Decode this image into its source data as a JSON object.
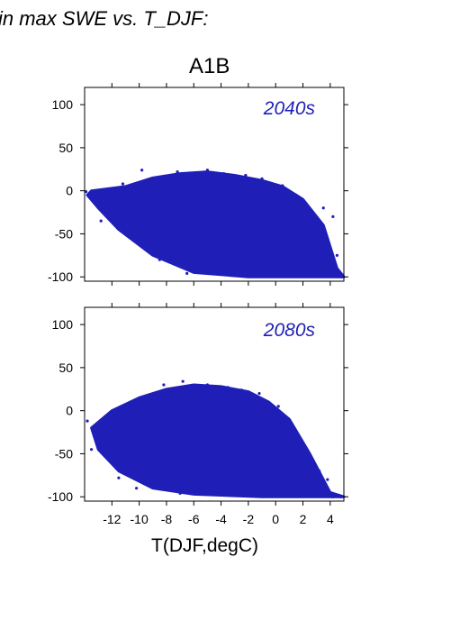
{
  "figure": {
    "header": "in max SWE vs. T_DJF:",
    "scenario": "A1B",
    "xlabel": "T(DJF,degC)",
    "point_color": "#1f1fb8"
  },
  "chart_data": [
    {
      "type": "scatter",
      "period_label": "2040s",
      "xlim": [
        -14,
        5
      ],
      "ylim": [
        -105,
        120
      ],
      "yticks": [
        100,
        50,
        0,
        -50,
        -100
      ],
      "xticks": [
        -12,
        -10,
        -8,
        -6,
        -4,
        -2,
        0,
        2,
        4
      ],
      "xticklabels_shown": false,
      "grid": false,
      "cloud_outline": [
        [
          -13.5,
          0
        ],
        [
          -11,
          5
        ],
        [
          -9,
          15
        ],
        [
          -7,
          20
        ],
        [
          -5,
          22
        ],
        [
          -3,
          18
        ],
        [
          -1,
          12
        ],
        [
          0.5,
          5
        ],
        [
          2,
          -10
        ],
        [
          3.5,
          -40
        ],
        [
          4.5,
          -90
        ],
        [
          5,
          -100
        ],
        [
          -2,
          -100
        ],
        [
          -6,
          -95
        ],
        [
          -9,
          -75
        ],
        [
          -11.5,
          -45
        ],
        [
          -13,
          -20
        ],
        [
          -13.8,
          -5
        ]
      ],
      "points": [
        [
          -13.9,
          -1
        ],
        [
          -12.8,
          -35
        ],
        [
          -11.2,
          8
        ],
        [
          -10.5,
          -55
        ],
        [
          -9.8,
          24
        ],
        [
          -8.5,
          -80
        ],
        [
          -7.2,
          22
        ],
        [
          -6.5,
          -96
        ],
        [
          -5.0,
          24
        ],
        [
          -3.8,
          20
        ],
        [
          -2.2,
          18
        ],
        [
          -1.0,
          14
        ],
        [
          0.5,
          6
        ],
        [
          1.5,
          -5
        ],
        [
          2.2,
          -25
        ],
        [
          2.8,
          -40
        ],
        [
          3.2,
          -55
        ],
        [
          3.5,
          -20
        ],
        [
          4.2,
          -30
        ],
        [
          4.5,
          -75
        ],
        [
          4.8,
          -100
        ],
        [
          3.9,
          -90
        ],
        [
          -12.0,
          -20
        ],
        [
          -13.0,
          -10
        ]
      ]
    },
    {
      "type": "scatter",
      "period_label": "2080s",
      "xlim": [
        -14,
        5
      ],
      "ylim": [
        -105,
        120
      ],
      "yticks": [
        100,
        50,
        0,
        -50,
        -100
      ],
      "xticks": [
        -12,
        -10,
        -8,
        -6,
        -4,
        -2,
        0,
        2,
        4
      ],
      "xticklabels": [
        "-12",
        "-10",
        "-8",
        "-6",
        "-4",
        "-2",
        "0",
        "2",
        "4"
      ],
      "grid": false,
      "cloud_outline": [
        [
          -13.5,
          -20
        ],
        [
          -12,
          0
        ],
        [
          -10,
          15
        ],
        [
          -8,
          25
        ],
        [
          -6,
          30
        ],
        [
          -4,
          28
        ],
        [
          -2,
          22
        ],
        [
          -0.5,
          10
        ],
        [
          1,
          -10
        ],
        [
          2.5,
          -50
        ],
        [
          4,
          -95
        ],
        [
          5,
          -100
        ],
        [
          -1,
          -100
        ],
        [
          -6,
          -97
        ],
        [
          -9,
          -90
        ],
        [
          -11.5,
          -70
        ],
        [
          -13,
          -45
        ]
      ],
      "points": [
        [
          -13.8,
          -12
        ],
        [
          -13.5,
          -45
        ],
        [
          -12.2,
          -5
        ],
        [
          -11.5,
          -78
        ],
        [
          -10.0,
          12
        ],
        [
          -8.2,
          30
        ],
        [
          -6.8,
          34
        ],
        [
          -5.0,
          30
        ],
        [
          -3.5,
          27
        ],
        [
          -2.5,
          24
        ],
        [
          -1.2,
          20
        ],
        [
          0.2,
          5
        ],
        [
          1.3,
          -30
        ],
        [
          2.0,
          -40
        ],
        [
          2.5,
          -55
        ],
        [
          3.2,
          -70
        ],
        [
          3.8,
          -80
        ],
        [
          4.2,
          -100
        ],
        [
          4.8,
          -100
        ],
        [
          -12.6,
          -40
        ],
        [
          -10.2,
          -90
        ],
        [
          -7.0,
          -96
        ]
      ]
    }
  ]
}
